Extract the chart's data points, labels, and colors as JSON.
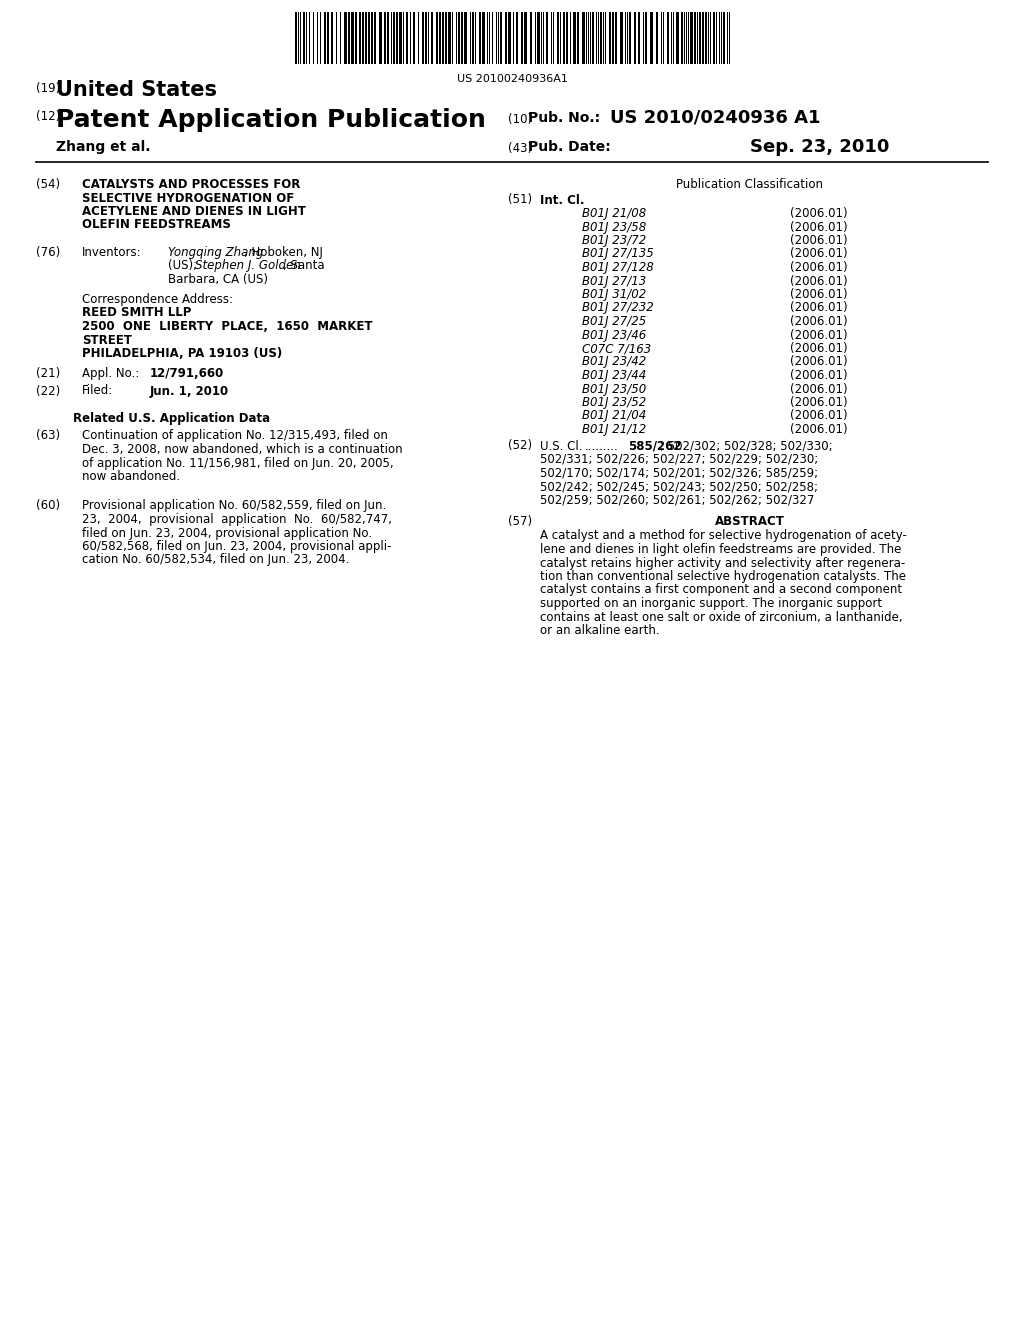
{
  "background_color": "#ffffff",
  "barcode_text": "US 20100240936A1",
  "header": {
    "country_number": "(19)",
    "country": "United States",
    "type_number": "(12)",
    "type": "Patent Application Publication",
    "pub_no_label_number": "(10)",
    "pub_no_label": "Pub. No.:",
    "pub_no": "US 2010/0240936 A1",
    "authors": "Zhang et al.",
    "date_label_number": "(43)",
    "date_label": "Pub. Date:",
    "date": "Sep. 23, 2010"
  },
  "left_col": {
    "title_num": "(54)",
    "title_line1": "CATALYSTS AND PROCESSES FOR",
    "title_line2": "SELECTIVE HYDROGENATION OF",
    "title_line3": "ACETYLENE AND DIENES IN LIGHT",
    "title_line4": "OLEFIN FEEDSTREAMS",
    "inventors_num": "(76)",
    "inventors_label": "Inventors:",
    "inv_name1": "Yongqing Zhang",
    "inv_rest1": ", Hoboken, NJ",
    "inv_line2a": "(US); ",
    "inv_name2": "Stephen J. Golden",
    "inv_rest2": ", Santa",
    "inv_line3": "Barbara, CA (US)",
    "corr_label": "Correspondence Address:",
    "corr_line1": "REED SMITH LLP",
    "corr_line2": "2500  ONE  LIBERTY  PLACE,  1650  MARKET",
    "corr_line3": "STREET",
    "corr_line4": "PHILADELPHIA, PA 19103 (US)",
    "appl_num": "(21)",
    "appl_label": "Appl. No.:",
    "appl_val": "12/791,660",
    "filed_num": "(22)",
    "filed_label": "Filed:",
    "filed_val": "Jun. 1, 2010",
    "related_header": "Related U.S. Application Data",
    "continuation_num": "(63)",
    "cont_line1": "Continuation of application No. 12/315,493, filed on",
    "cont_line2": "Dec. 3, 2008, now abandoned, which is a continuation",
    "cont_line3": "of application No. 11/156,981, filed on Jun. 20, 2005,",
    "cont_line4": "now abandoned.",
    "provisional_num": "(60)",
    "prov_line1": "Provisional application No. 60/582,559, filed on Jun.",
    "prov_line2": "23,  2004,  provisional  application  No.  60/582,747,",
    "prov_line3": "filed on Jun. 23, 2004, provisional application No.",
    "prov_line4": "60/582,568, filed on Jun. 23, 2004, provisional appli-",
    "prov_line5": "cation No. 60/582,534, filed on Jun. 23, 2004."
  },
  "right_col": {
    "pub_class_header": "Publication Classification",
    "int_cl_num": "(51)",
    "int_cl_label": "Int. Cl.",
    "classifications": [
      [
        "B01J 21/08",
        "(2006.01)"
      ],
      [
        "B01J 23/58",
        "(2006.01)"
      ],
      [
        "B01J 23/72",
        "(2006.01)"
      ],
      [
        "B01J 27/135",
        "(2006.01)"
      ],
      [
        "B01J 27/128",
        "(2006.01)"
      ],
      [
        "B01J 27/13",
        "(2006.01)"
      ],
      [
        "B01J 31/02",
        "(2006.01)"
      ],
      [
        "B01J 27/232",
        "(2006.01)"
      ],
      [
        "B01J 27/25",
        "(2006.01)"
      ],
      [
        "B01J 23/46",
        "(2006.01)"
      ],
      [
        "C07C 7/163",
        "(2006.01)"
      ],
      [
        "B01J 23/42",
        "(2006.01)"
      ],
      [
        "B01J 23/44",
        "(2006.01)"
      ],
      [
        "B01J 23/50",
        "(2006.01)"
      ],
      [
        "B01J 23/52",
        "(2006.01)"
      ],
      [
        "B01J 21/04",
        "(2006.01)"
      ],
      [
        "B01J 21/12",
        "(2006.01)"
      ]
    ],
    "us_cl_num": "(52)",
    "us_cl_label": "U.S. Cl.",
    "us_cl_dots": ".........",
    "us_cl_bold": "585/262",
    "us_cl_line1_rest": "; 502/302; 502/328; 502/330;",
    "us_cl_line2": "502/331; 502/226; 502/227; 502/229; 502/230;",
    "us_cl_line3": "502/170; 502/174; 502/201; 502/326; 585/259;",
    "us_cl_line4": "502/242; 502/245; 502/243; 502/250; 502/258;",
    "us_cl_line5": "502/259; 502/260; 502/261; 502/262; 502/327",
    "abstract_num": "(57)",
    "abstract_label": "ABSTRACT",
    "abs_line1": "A catalyst and a method for selective hydrogenation of acety-",
    "abs_line2": "lene and dienes in light olefin feedstreams are provided. The",
    "abs_line3": "catalyst retains higher activity and selectivity after regenera-",
    "abs_line4": "tion than conventional selective hydrogenation catalysts. The",
    "abs_line5": "catalyst contains a first component and a second component",
    "abs_line6": "supported on an inorganic support. The inorganic support",
    "abs_line7": "contains at least one salt or oxide of zirconium, a lanthanide,",
    "abs_line8": "or an alkaline earth."
  }
}
